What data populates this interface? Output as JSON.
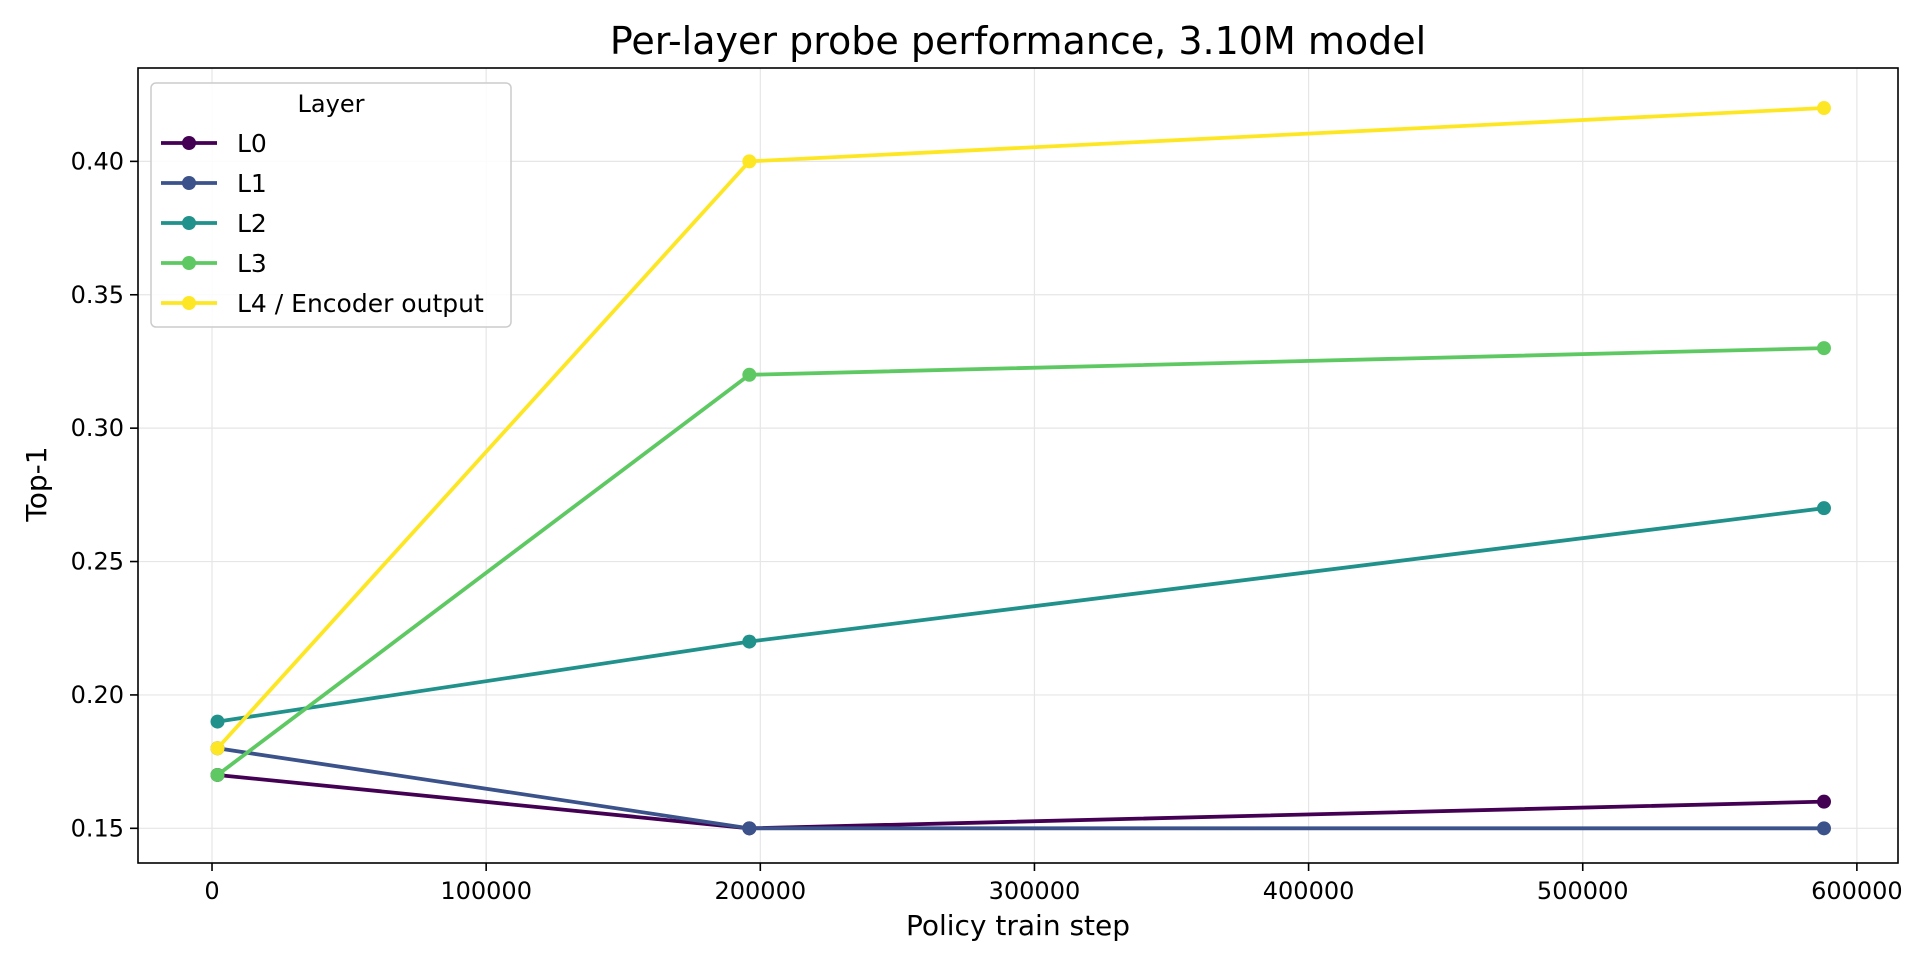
{
  "chart_data": {
    "type": "line",
    "title": "Per-layer probe performance, 3.10M model",
    "xlabel": "Policy train step",
    "ylabel": "Top-1",
    "xlim": [
      -27000,
      615000
    ],
    "ylim": [
      0.137,
      0.435
    ],
    "xticks": [
      0,
      100000,
      200000,
      300000,
      400000,
      500000,
      600000
    ],
    "xtick_labels": [
      "0",
      "100000",
      "200000",
      "300000",
      "400000",
      "500000",
      "600000"
    ],
    "yticks": [
      0.15,
      0.2,
      0.25,
      0.3,
      0.35,
      0.4
    ],
    "ytick_labels": [
      "0.15",
      "0.20",
      "0.25",
      "0.30",
      "0.35",
      "0.40"
    ],
    "grid": true,
    "legend": {
      "title": "Layer",
      "position": "top-left"
    },
    "x": [
      2000,
      196000,
      588000
    ],
    "series": [
      {
        "name": "L0",
        "color": "#440154",
        "values": [
          0.17,
          0.15,
          0.16
        ]
      },
      {
        "name": "L1",
        "color": "#3b528b",
        "values": [
          0.18,
          0.15,
          0.15
        ]
      },
      {
        "name": "L2",
        "color": "#21918c",
        "values": [
          0.19,
          0.22,
          0.27
        ]
      },
      {
        "name": "L3",
        "color": "#5ec962",
        "values": [
          0.17,
          0.32,
          0.33
        ]
      },
      {
        "name": "L4 / Encoder output",
        "color": "#fde725",
        "values": [
          0.18,
          0.4,
          0.42
        ]
      }
    ]
  }
}
